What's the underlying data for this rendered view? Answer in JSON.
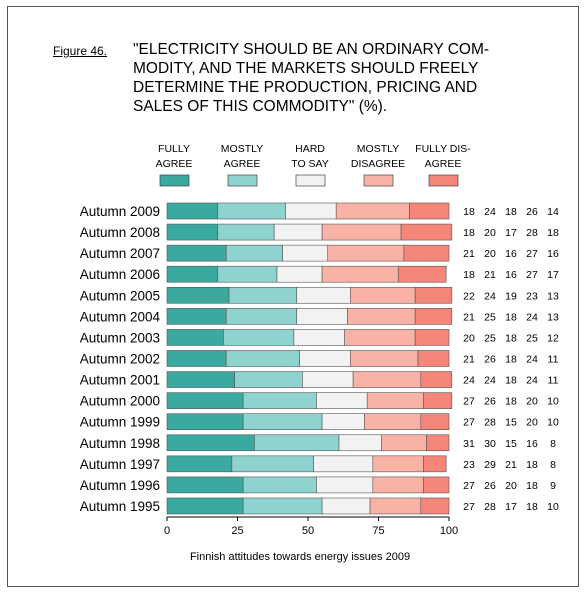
{
  "figure_label": "Figure 46.",
  "title_lines": [
    "\"ELECTRICITY SHOULD BE AN ORDINARY COM-",
    "MODITY, AND THE MARKETS SHOULD FREELY",
    "DETERMINE THE PRODUCTION, PRICING AND",
    "SALES OF THIS COMMODITY\" (%)."
  ],
  "source": "Finnish attitudes towards energy issues 2009",
  "colors": {
    "fully_agree": "#3aa99f",
    "mostly_agree": "#8ed3cf",
    "hard_to_say": "#f2f2f2",
    "mostly_disagree": "#f9b3a6",
    "fully_disagree": "#f6857a"
  },
  "chart_data": {
    "type": "bar",
    "orientation": "horizontal",
    "stacked": true,
    "categories": [
      "Autumn 2009",
      "Autumn 2008",
      "Autumn 2007",
      "Autumn 2006",
      "Autumn 2005",
      "Autumn 2004",
      "Autumn 2003",
      "Autumn 2002",
      "Autumn 2001",
      "Autumn 2000",
      "Autumn 1999",
      "Autumn 1998",
      "Autumn 1997",
      "Autumn 1996",
      "Autumn 1995"
    ],
    "series": [
      {
        "name": "FULLY AGREE",
        "name_lines": [
          "FULLY",
          "AGREE"
        ],
        "color": "#3aa99f",
        "values": [
          18,
          18,
          21,
          18,
          22,
          21,
          20,
          21,
          24,
          27,
          27,
          31,
          23,
          27,
          27
        ]
      },
      {
        "name": "MOSTLY AGREE",
        "name_lines": [
          "MOSTLY",
          "AGREE"
        ],
        "color": "#8ed3cf",
        "values": [
          24,
          20,
          20,
          21,
          24,
          25,
          25,
          26,
          24,
          26,
          28,
          30,
          29,
          26,
          28
        ]
      },
      {
        "name": "HARD TO SAY",
        "name_lines": [
          "HARD",
          "TO SAY"
        ],
        "color": "#f2f2f2",
        "values": [
          18,
          17,
          16,
          16,
          19,
          18,
          18,
          18,
          18,
          18,
          15,
          15,
          21,
          20,
          17
        ]
      },
      {
        "name": "MOSTLY DISAGREE",
        "name_lines": [
          "MOSTLY",
          "DISAGREE"
        ],
        "color": "#f9b3a6",
        "values": [
          26,
          28,
          27,
          27,
          23,
          24,
          25,
          24,
          24,
          20,
          20,
          16,
          18,
          18,
          18
        ]
      },
      {
        "name": "FULLY DISAGREE",
        "name_lines": [
          "FULLY DIS-",
          "AGREE"
        ],
        "color": "#f6857a",
        "values": [
          14,
          18,
          16,
          17,
          13,
          13,
          12,
          11,
          11,
          10,
          10,
          8,
          8,
          9,
          10
        ]
      }
    ],
    "xlim": [
      0,
      100
    ],
    "xticks": [
      0,
      25,
      50,
      75,
      100
    ],
    "legend_position": "top"
  }
}
